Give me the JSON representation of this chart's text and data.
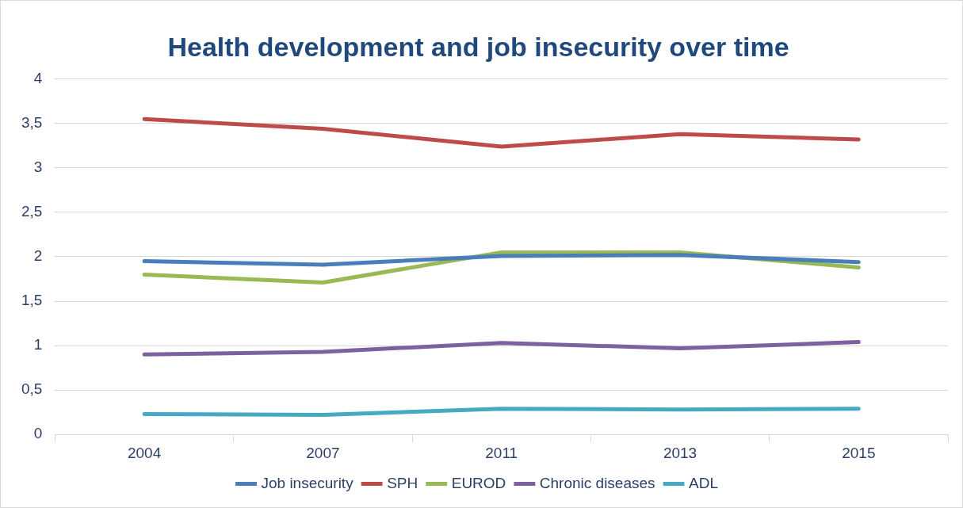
{
  "chart_data": {
    "type": "line",
    "title": "Health development and job insecurity over time",
    "categories": [
      "2004",
      "2007",
      "2011",
      "2013",
      "2015"
    ],
    "series": [
      {
        "name": "Job insecurity",
        "color": "#4a7ebb",
        "values": [
          1.95,
          1.91,
          2.01,
          2.02,
          1.94
        ]
      },
      {
        "name": "SPH",
        "color": "#be4b48",
        "values": [
          3.55,
          3.44,
          3.24,
          3.38,
          3.32
        ]
      },
      {
        "name": "EUROD",
        "color": "#98b954",
        "values": [
          1.8,
          1.71,
          2.05,
          2.05,
          1.88
        ]
      },
      {
        "name": "Chronic diseases",
        "color": "#7d60a0",
        "values": [
          0.9,
          0.93,
          1.03,
          0.97,
          1.04
        ]
      },
      {
        "name": "ADL",
        "color": "#46aac5",
        "values": [
          0.23,
          0.22,
          0.29,
          0.28,
          0.29
        ]
      }
    ],
    "ylim": [
      0,
      4
    ],
    "yticks": [
      {
        "value": 0,
        "label": "0"
      },
      {
        "value": 0.5,
        "label": "0,5"
      },
      {
        "value": 1,
        "label": "1"
      },
      {
        "value": 1.5,
        "label": "1,5"
      },
      {
        "value": 2,
        "label": "2"
      },
      {
        "value": 2.5,
        "label": "2,5"
      },
      {
        "value": 3,
        "label": "3"
      },
      {
        "value": 3.5,
        "label": "3,5"
      },
      {
        "value": 4,
        "label": "4"
      }
    ],
    "grid": "y",
    "legend": "bottom",
    "marker": "none",
    "line_style": "solid"
  }
}
